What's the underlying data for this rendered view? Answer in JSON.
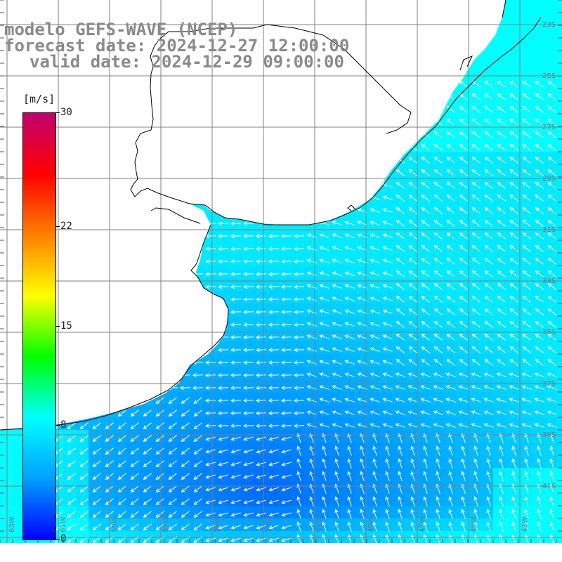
{
  "title": {
    "line1": "modelo GEFS-WAVE (NCEP)",
    "line2": "forecast date: 2024-12-27 12:00:00",
    "line3": "valid date: 2024-12-29 09:00:00"
  },
  "colorbar": {
    "unit": "[m/s]",
    "ticks": [
      "30",
      "22",
      "15",
      "8",
      "0"
    ],
    "tick_values": [
      30,
      22,
      15,
      8,
      0
    ],
    "min": 0,
    "max": 30,
    "colors": [
      "#0000ff",
      "#00a0ff",
      "#00ffff",
      "#00ff00",
      "#ffff00",
      "#ff8000",
      "#ff0000",
      "#c0006e"
    ]
  },
  "axes": {
    "lon_labels": [
      "63W",
      "61W",
      "59W",
      "57W",
      "55W",
      "53W",
      "51W",
      "49W",
      "47W",
      "45W",
      "43W"
    ],
    "lat_labels": [
      "23S",
      "25S",
      "27S",
      "29S",
      "31S",
      "33S",
      "35S",
      "37S",
      "39S",
      "41S"
    ]
  },
  "colors": {
    "land": "#ffffff",
    "grid": "#808080",
    "coast": "#000000",
    "arrow": "#ffffff",
    "title": "#8a8a8a"
  }
}
